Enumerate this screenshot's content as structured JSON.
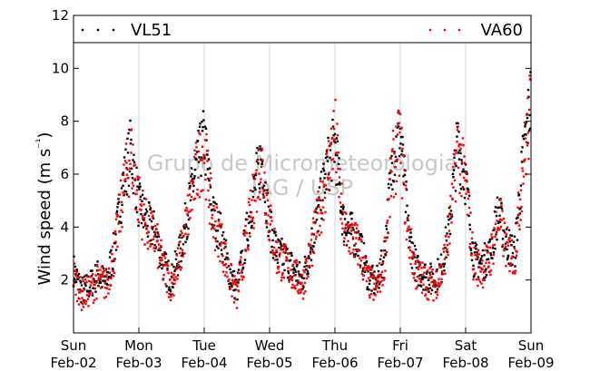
{
  "chart_data": {
    "type": "scatter",
    "title": "",
    "ylabel": "Wind speed (m s⁻¹)",
    "xlabel": "",
    "ylim": [
      0,
      12
    ],
    "yticks": [
      2,
      4,
      6,
      8,
      10,
      12
    ],
    "xlim": [
      "2014-02-02",
      "2014-02-09"
    ],
    "xticks": [
      {
        "day": "Sun",
        "date": "Feb-02"
      },
      {
        "day": "Mon",
        "date": "Feb-03"
      },
      {
        "day": "Tue",
        "date": "Feb-04"
      },
      {
        "day": "Wed",
        "date": "Feb-05"
      },
      {
        "day": "Thu",
        "date": "Feb-06"
      },
      {
        "day": "Fri",
        "date": "Feb-07"
      },
      {
        "day": "Sat",
        "date": "Feb-08"
      },
      {
        "day": "Sun",
        "date": "Feb-09"
      }
    ],
    "grid": "vertical",
    "legend_position": "top",
    "watermark": [
      "Grupo de Micrometeorologia",
      "IAG / USP"
    ],
    "series": [
      {
        "name": "VL51",
        "color": "#000000",
        "x": [
          "2014-02-02 00:00",
          "2014-02-02 03:00",
          "2014-02-02 06:00",
          "2014-02-02 09:00",
          "2014-02-02 12:00",
          "2014-02-02 15:00",
          "2014-02-02 18:00",
          "2014-02-02 21:00",
          "2014-02-03 00:00",
          "2014-02-03 03:00",
          "2014-02-03 06:00",
          "2014-02-03 09:00",
          "2014-02-03 12:00",
          "2014-02-03 15:00",
          "2014-02-03 18:00",
          "2014-02-03 21:00",
          "2014-02-04 00:00",
          "2014-02-04 03:00",
          "2014-02-04 06:00",
          "2014-02-04 09:00",
          "2014-02-04 12:00",
          "2014-02-04 15:00",
          "2014-02-04 18:00",
          "2014-02-04 21:00",
          "2014-02-05 00:00",
          "2014-02-05 03:00",
          "2014-02-05 06:00",
          "2014-02-05 09:00",
          "2014-02-05 12:00",
          "2014-02-05 15:00",
          "2014-02-05 18:00",
          "2014-02-05 21:00",
          "2014-02-06 00:00",
          "2014-02-06 03:00",
          "2014-02-06 06:00",
          "2014-02-06 09:00",
          "2014-02-06 12:00",
          "2014-02-06 15:00",
          "2014-02-06 18:00",
          "2014-02-06 21:00",
          "2014-02-07 00:00",
          "2014-02-07 03:00",
          "2014-02-07 06:00",
          "2014-02-07 09:00",
          "2014-02-07 12:00",
          "2014-02-07 15:00",
          "2014-02-07 18:00",
          "2014-02-07 21:00",
          "2014-02-08 00:00",
          "2014-02-08 03:00",
          "2014-02-08 06:00",
          "2014-02-08 09:00",
          "2014-02-08 12:00",
          "2014-02-08 15:00",
          "2014-02-08 18:00",
          "2014-02-08 21:00",
          "2014-02-09 00:00"
        ],
        "y": [
          2.4,
          1.6,
          1.8,
          2.2,
          1.9,
          3.2,
          5.5,
          7.0,
          4.8,
          4.2,
          3.8,
          2.6,
          2.0,
          3.0,
          4.6,
          6.2,
          7.4,
          4.5,
          3.8,
          2.4,
          1.6,
          3.4,
          5.2,
          6.8,
          4.0,
          3.0,
          2.8,
          2.4,
          2.0,
          3.2,
          4.6,
          6.2,
          7.2,
          4.2,
          3.8,
          3.4,
          2.2,
          1.8,
          2.8,
          6.5,
          7.6,
          3.8,
          2.4,
          2.2,
          2.0,
          2.4,
          4.0,
          7.2,
          5.8,
          2.8,
          2.6,
          3.0,
          4.6,
          3.4,
          3.0,
          6.5,
          9.0
        ]
      },
      {
        "name": "VA60",
        "color": "#ff0000",
        "x": [
          "2014-02-02 00:00",
          "2014-02-02 03:00",
          "2014-02-02 06:00",
          "2014-02-02 09:00",
          "2014-02-02 12:00",
          "2014-02-02 15:00",
          "2014-02-02 18:00",
          "2014-02-02 21:00",
          "2014-02-03 00:00",
          "2014-02-03 03:00",
          "2014-02-03 06:00",
          "2014-02-03 09:00",
          "2014-02-03 12:00",
          "2014-02-03 15:00",
          "2014-02-03 18:00",
          "2014-02-03 21:00",
          "2014-02-04 00:00",
          "2014-02-04 03:00",
          "2014-02-04 06:00",
          "2014-02-04 09:00",
          "2014-02-04 12:00",
          "2014-02-04 15:00",
          "2014-02-04 18:00",
          "2014-02-04 21:00",
          "2014-02-05 00:00",
          "2014-02-05 03:00",
          "2014-02-05 06:00",
          "2014-02-05 09:00",
          "2014-02-05 12:00",
          "2014-02-05 15:00",
          "2014-02-05 18:00",
          "2014-02-05 21:00",
          "2014-02-06 00:00",
          "2014-02-06 03:00",
          "2014-02-06 06:00",
          "2014-02-06 09:00",
          "2014-02-06 12:00",
          "2014-02-06 15:00",
          "2014-02-06 18:00",
          "2014-02-06 21:00",
          "2014-02-07 00:00",
          "2014-02-07 03:00",
          "2014-02-07 06:00",
          "2014-02-07 09:00",
          "2014-02-07 12:00",
          "2014-02-07 15:00",
          "2014-02-07 18:00",
          "2014-02-07 21:00",
          "2014-02-08 00:00",
          "2014-02-08 03:00",
          "2014-02-08 06:00",
          "2014-02-08 09:00",
          "2014-02-08 12:00",
          "2014-02-08 15:00",
          "2014-02-08 18:00",
          "2014-02-08 21:00",
          "2014-02-09 00:00"
        ],
        "y": [
          2.2,
          1.4,
          1.6,
          2.0,
          1.8,
          3.0,
          5.2,
          6.8,
          5.0,
          4.0,
          3.6,
          2.4,
          1.8,
          2.8,
          4.4,
          6.0,
          7.0,
          4.3,
          3.6,
          2.2,
          1.4,
          3.2,
          5.0,
          6.6,
          4.2,
          2.8,
          2.6,
          2.2,
          1.8,
          3.0,
          4.4,
          6.0,
          7.6,
          4.0,
          3.6,
          3.2,
          2.0,
          1.6,
          2.6,
          6.2,
          7.2,
          3.6,
          2.2,
          2.0,
          1.8,
          2.2,
          3.8,
          7.0,
          5.6,
          2.6,
          2.4,
          2.8,
          4.4,
          3.2,
          2.8,
          6.2,
          8.6
        ]
      }
    ]
  }
}
